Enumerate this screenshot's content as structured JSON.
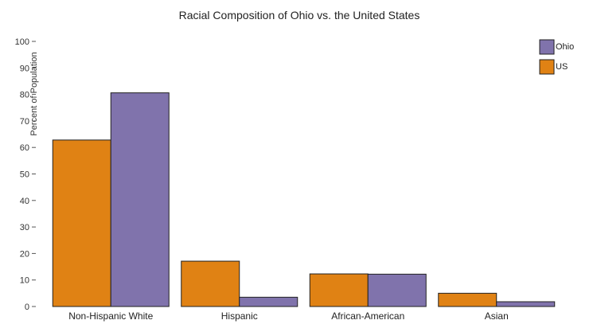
{
  "chart_data": {
    "type": "bar",
    "title": "Racial Composition of Ohio vs. the United States",
    "xlabel": "",
    "ylabel": "Percent of Population",
    "ylim": [
      0,
      100
    ],
    "yticks": [
      0,
      10,
      20,
      30,
      40,
      50,
      60,
      70,
      80,
      90,
      100
    ],
    "categories": [
      "Non-Hispanic White",
      "Hispanic",
      "African-American",
      "Asian"
    ],
    "series": [
      {
        "name": "US",
        "color": "#e08214",
        "values": [
          62.8,
          17.1,
          12.3,
          5.0
        ]
      },
      {
        "name": "Ohio",
        "color": "#8073ac",
        "values": [
          80.6,
          3.5,
          12.2,
          1.8
        ]
      }
    ],
    "legend_order": [
      "Ohio",
      "US"
    ],
    "legend_position": "top-right",
    "grid": false
  }
}
